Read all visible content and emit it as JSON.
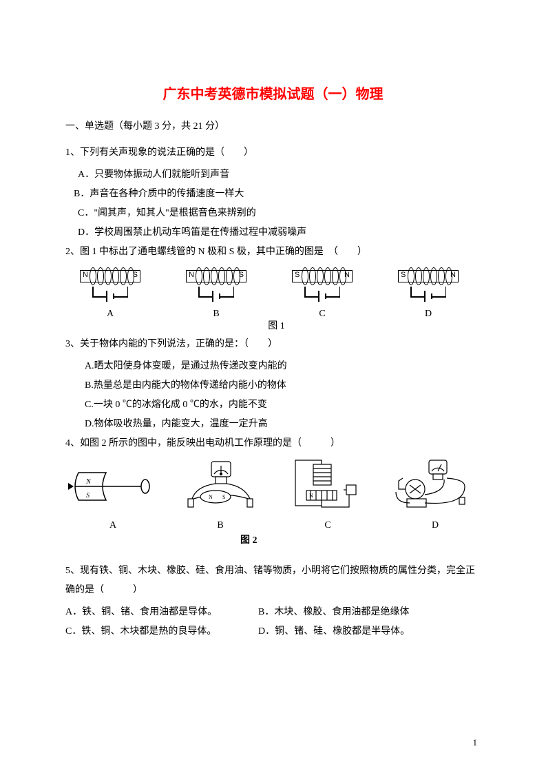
{
  "title": "广东中考英德市模拟试题（一）物理",
  "section1": "一、单选题（每小题 3 分，共 21 分）",
  "q1": {
    "stem": "1、下列有关声现象的说法正确的是（　　）",
    "A": "A．只要物体振动人们就能听到声音",
    "B": "B．声音在各种介质中的传播速度一样大",
    "C": "C．\"闻其声，知其人\"是根据音色来辨别的",
    "D": "D．学校周围禁止机动车鸣笛是在传播过程中减弱噪声"
  },
  "q2": {
    "stem": "2、图 1 中标出了通电螺线管的 N 极和 S 极，其中正确的图是　（　　）",
    "fig": {
      "caption": "图 1",
      "solenoids": [
        {
          "leftPole": "N",
          "rightPole": "S",
          "letter": "A"
        },
        {
          "leftPole": "N",
          "rightPole": "S",
          "letter": "B"
        },
        {
          "leftPole": "S",
          "rightPole": "N",
          "letter": "C"
        },
        {
          "leftPole": "S",
          "rightPole": "N",
          "letter": "D"
        }
      ],
      "coilStroke": "#000000"
    }
  },
  "q3": {
    "stem": "3、关于物体内能的下列说法，正确的是：（　　）",
    "A": "A.晒太阳使身体变暖，是通过热传递改变内能的",
    "B": "B.热量总是由内能大的物体传递给内能小的物体",
    "C": "C.一块 0 ℃的冰熔化成 0 ℃的水，内能不变",
    "D": "D.物体吸收热量，内能变大，温度一定升高"
  },
  "q4": {
    "stem": "4、如图 2 所示的图中，能反映出电动机工作原理的是（　　　）",
    "fig": {
      "caption": "图 2",
      "letters": [
        "A",
        "B",
        "C",
        "D"
      ]
    }
  },
  "q5": {
    "stem": "5、现有铁、铜、木块、橡胶、硅、食用油、锗等物质，小明将它们按照物质的属性分类，完全正确的是（　　　）",
    "A": "A．铁、铜、锗、食用油都是导体。",
    "B": "B．木块、橡胶、食用油都是绝缘体",
    "C": "C．铁、铜、木块都是热的良导体。",
    "D": "D．铜、锗、硅、橡胶都是半导体。"
  },
  "pageNumber": "1",
  "colors": {
    "title": "#ff0000",
    "text": "#000000",
    "background": "#ffffff"
  }
}
